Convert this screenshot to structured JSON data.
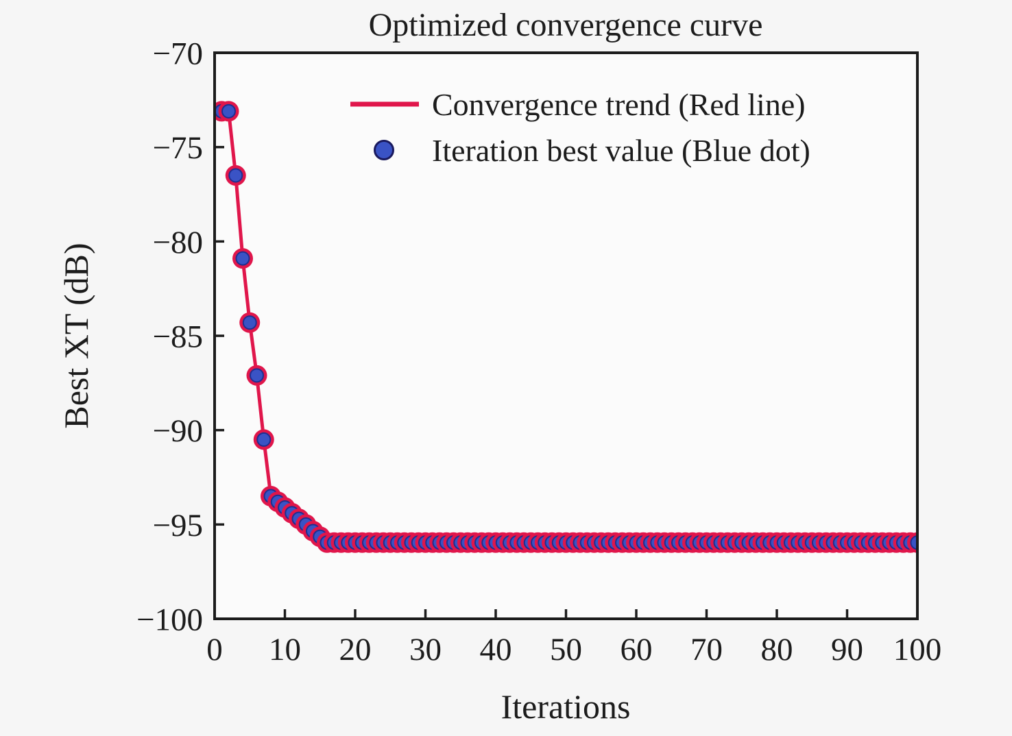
{
  "chart_data": {
    "type": "line",
    "title": "Optimized convergence curve",
    "xlabel": "Iterations",
    "ylabel": "Best XT (dB)",
    "xlim": [
      0,
      100
    ],
    "ylim": [
      -100,
      -70
    ],
    "grid": false,
    "legend_position": "upper-center-inside",
    "x_ticks": [
      0,
      10,
      20,
      30,
      40,
      50,
      60,
      70,
      80,
      90,
      100
    ],
    "x_tick_labels": [
      "0",
      "10",
      "20",
      "30",
      "40",
      "50",
      "60",
      "70",
      "80",
      "90",
      "100"
    ],
    "y_ticks": [
      -70,
      -75,
      -80,
      -85,
      -90,
      -95,
      -100
    ],
    "y_tick_labels": [
      "−70",
      "−75",
      "−80",
      "−85",
      "−90",
      "−95",
      "−100"
    ],
    "legend": [
      {
        "label": "Convergence trend (Red line)",
        "marker": "line"
      },
      {
        "label": "Iteration best value (Blue dot)",
        "marker": "dot"
      }
    ],
    "colors": {
      "line": "#e0164b",
      "marker_fill": "#3a53c5",
      "marker_core_edge": "#1f2f8f",
      "axis": "#1c1c1c",
      "plot_bg": "#fbfbfb",
      "figure_bg": "#f6f6f6"
    },
    "series": [
      {
        "name": "Best XT",
        "x": [
          1,
          2,
          3,
          4,
          5,
          6,
          7,
          8,
          9,
          10,
          11,
          12,
          13,
          14,
          15,
          16,
          17,
          18,
          19,
          20,
          21,
          22,
          23,
          24,
          25,
          26,
          27,
          28,
          29,
          30,
          31,
          32,
          33,
          34,
          35,
          36,
          37,
          38,
          39,
          40,
          41,
          42,
          43,
          44,
          45,
          46,
          47,
          48,
          49,
          50,
          51,
          52,
          53,
          54,
          55,
          56,
          57,
          58,
          59,
          60,
          61,
          62,
          63,
          64,
          65,
          66,
          67,
          68,
          69,
          70,
          71,
          72,
          73,
          74,
          75,
          76,
          77,
          78,
          79,
          80,
          81,
          82,
          83,
          84,
          85,
          86,
          87,
          88,
          89,
          90,
          91,
          92,
          93,
          94,
          95,
          96,
          97,
          98,
          99,
          100
        ],
        "y": [
          -73.1,
          -73.1,
          -76.5,
          -80.9,
          -84.3,
          -87.1,
          -90.5,
          -93.5,
          -93.8,
          -94.1,
          -94.4,
          -94.7,
          -95.0,
          -95.35,
          -95.65,
          -95.96,
          -95.96,
          -95.96,
          -95.96,
          -95.96,
          -95.96,
          -95.96,
          -95.96,
          -95.96,
          -95.96,
          -95.96,
          -95.96,
          -95.96,
          -95.96,
          -95.96,
          -95.96,
          -95.96,
          -95.96,
          -95.96,
          -95.96,
          -95.96,
          -95.96,
          -95.96,
          -95.96,
          -95.96,
          -95.96,
          -95.96,
          -95.96,
          -95.96,
          -95.96,
          -95.96,
          -95.96,
          -95.96,
          -95.96,
          -95.96,
          -95.96,
          -95.96,
          -95.96,
          -95.96,
          -95.96,
          -95.96,
          -95.96,
          -95.96,
          -95.96,
          -95.96,
          -95.96,
          -95.96,
          -95.96,
          -95.96,
          -95.96,
          -95.96,
          -95.96,
          -95.96,
          -95.96,
          -95.96,
          -95.96,
          -95.96,
          -95.96,
          -95.96,
          -95.96,
          -95.96,
          -95.96,
          -95.96,
          -95.96,
          -95.96,
          -95.96,
          -95.96,
          -95.96,
          -95.96,
          -95.96,
          -95.96,
          -95.96,
          -95.96,
          -95.96,
          -95.96,
          -95.96,
          -95.96,
          -95.96,
          -95.96,
          -95.96,
          -95.96,
          -95.96,
          -95.96,
          -95.96,
          -95.96
        ]
      }
    ]
  }
}
